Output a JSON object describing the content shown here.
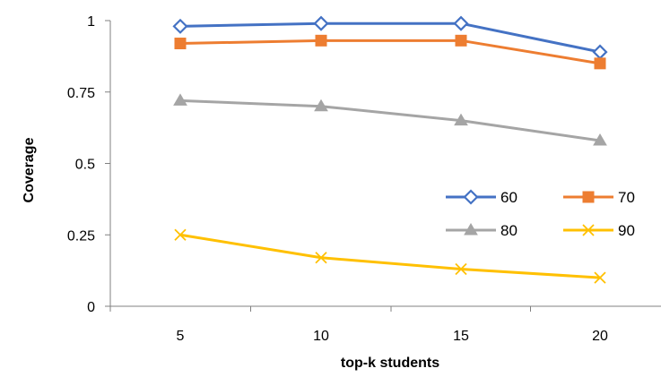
{
  "chart_data": {
    "type": "line",
    "title": "",
    "xlabel": "top-k students",
    "ylabel": "Coverage",
    "categories": [
      "5",
      "10",
      "15",
      "20"
    ],
    "ylim": [
      0,
      1
    ],
    "yticks": [
      "0",
      "0.25",
      "0.5",
      "0.75",
      "1"
    ],
    "grid": false,
    "legend_position": "right",
    "series": [
      {
        "name": "60",
        "values": [
          0.98,
          0.99,
          0.99,
          0.89
        ],
        "color": "#4472C4",
        "marker": "diamond"
      },
      {
        "name": "70",
        "values": [
          0.92,
          0.93,
          0.93,
          0.85
        ],
        "color": "#ED7D31",
        "marker": "square"
      },
      {
        "name": "80",
        "values": [
          0.72,
          0.7,
          0.65,
          0.58
        ],
        "color": "#A5A5A5",
        "marker": "triangle"
      },
      {
        "name": "90",
        "values": [
          0.25,
          0.17,
          0.13,
          0.1
        ],
        "color": "#FFC000",
        "marker": "x"
      }
    ]
  }
}
